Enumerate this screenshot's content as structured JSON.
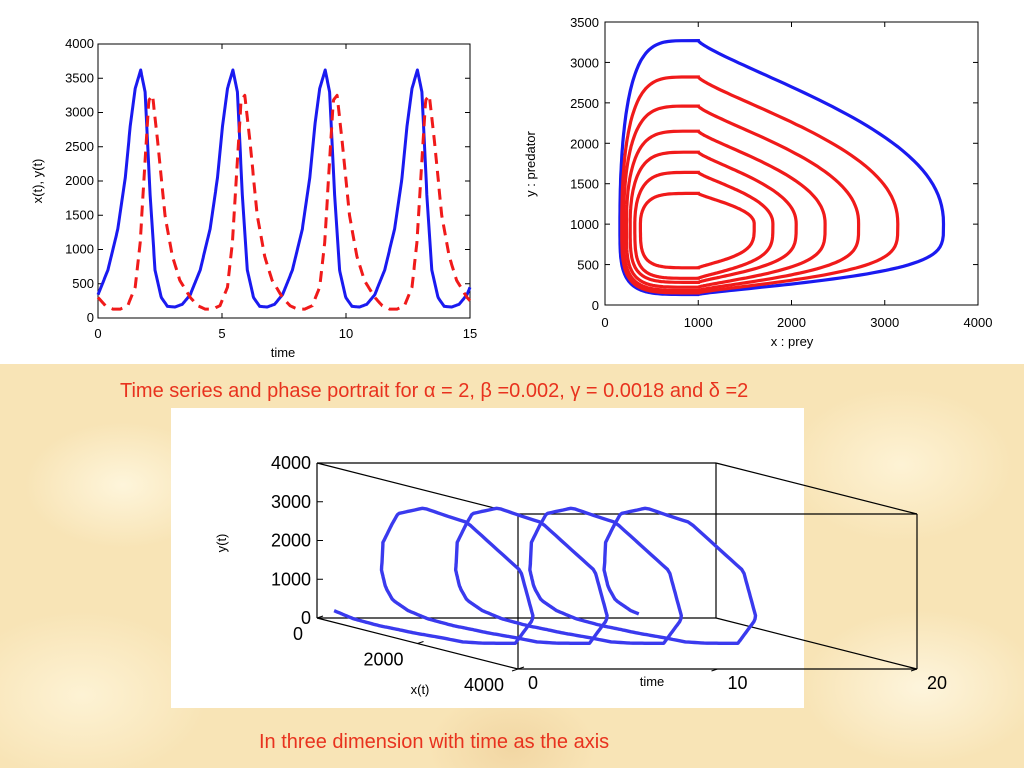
{
  "colors": {
    "x_series": "#1a1af0",
    "y_series": "#f01a1a",
    "orbit3d": "#3a3aee",
    "caption": "#e8321e"
  },
  "captions": {
    "top": "Time series and phase portrait  for  α = 2, β =0.002, γ = 0.0018 and δ =2",
    "bottom": "In three dimension with time as the axis"
  },
  "chart_data": [
    {
      "type": "line",
      "xlabel": "time",
      "ylabel": "x(t), y(t)",
      "xlim": [
        0,
        15
      ],
      "ylim": [
        0,
        4000
      ],
      "xticks": [
        "0",
        "5",
        "10",
        "15"
      ],
      "yticks": [
        "0",
        "500",
        "1000",
        "1500",
        "2000",
        "2500",
        "3000",
        "3500",
        "4000"
      ],
      "grid": false,
      "period": 3.72,
      "series": [
        {
          "style": "solid",
          "color": "blue",
          "x": [
            0,
            0.4,
            0.8,
            1.1,
            1.3,
            1.5,
            1.72,
            1.9,
            2.1,
            2.3,
            2.55,
            2.8,
            3.1,
            3.4,
            3.72
          ],
          "y": [
            340,
            700,
            1300,
            2050,
            2800,
            3350,
            3620,
            3300,
            1800,
            700,
            300,
            170,
            160,
            200,
            340
          ]
        },
        {
          "style": "dashed",
          "color": "red",
          "x": [
            0,
            0.3,
            0.6,
            0.9,
            1.2,
            1.5,
            1.7,
            1.9,
            2.05,
            2.2,
            2.4,
            2.7,
            3.0,
            3.3,
            3.72
          ],
          "y": [
            300,
            180,
            130,
            130,
            180,
            450,
            1100,
            2300,
            3180,
            3250,
            2600,
            1500,
            900,
            550,
            300
          ]
        }
      ]
    },
    {
      "type": "line",
      "xlabel": "x : prey",
      "ylabel": "y : predator",
      "xlim": [
        0,
        4000
      ],
      "ylim": [
        0,
        3500
      ],
      "xticks": [
        "0",
        "1000",
        "2000",
        "3000",
        "4000"
      ],
      "yticks": [
        "0",
        "500",
        "1000",
        "1500",
        "2000",
        "2500",
        "3000",
        "3500"
      ],
      "grid": false,
      "center": [
        1000,
        1000
      ],
      "series": [
        {
          "color": "blue",
          "x_max": 3630,
          "x_min": 160,
          "y_max": 3270,
          "y_min": 130
        },
        {
          "color": "red",
          "x_max": 3140,
          "x_min": 180,
          "y_max": 2820,
          "y_min": 150
        },
        {
          "color": "red",
          "x_max": 2720,
          "x_min": 200,
          "y_max": 2460,
          "y_min": 180
        },
        {
          "color": "red",
          "x_max": 2360,
          "x_min": 230,
          "y_max": 2150,
          "y_min": 220
        },
        {
          "color": "red",
          "x_max": 2050,
          "x_min": 270,
          "y_max": 1890,
          "y_min": 280
        },
        {
          "color": "red",
          "x_max": 1800,
          "x_min": 320,
          "y_max": 1640,
          "y_min": 330
        },
        {
          "color": "red",
          "x_max": 1600,
          "x_min": 380,
          "y_max": 1380,
          "y_min": 460
        }
      ]
    },
    {
      "type": "line",
      "view": "3d",
      "xlabel": "x(t)",
      "ylabel": "y(t)",
      "zlabel": "time",
      "x_ticks": [
        "0",
        "2000",
        "4000"
      ],
      "y_ticks": [
        "0",
        "1000",
        "2000",
        "3000",
        "4000"
      ],
      "time_ticks": [
        "0",
        "10",
        "20"
      ],
      "xlim": [
        0,
        4000
      ],
      "ylim": [
        0,
        4000
      ],
      "tlim": [
        0,
        20
      ],
      "series": [
        {
          "color": "blue",
          "t_start": 0,
          "t_end": 15,
          "cycles": 4
        }
      ]
    }
  ]
}
